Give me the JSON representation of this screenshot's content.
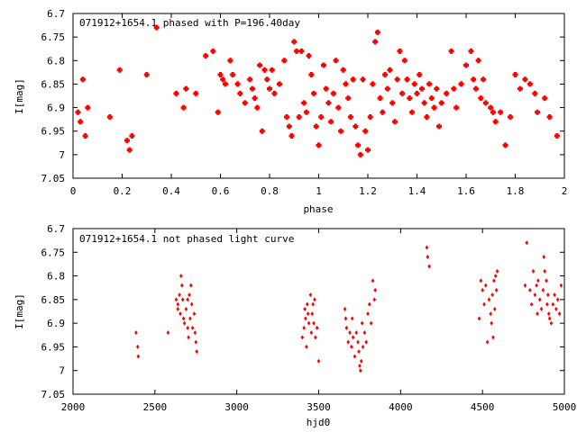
{
  "chart_data": [
    {
      "type": "scatter",
      "title": "071912+1654.1 phased with P=196.40day",
      "xlabel": "phase",
      "ylabel": "I[mag]",
      "xlim": [
        0,
        2
      ],
      "ylim": [
        7.05,
        6.7
      ],
      "y_inverted": true,
      "xticks": [
        "0",
        "0.2",
        "0.4",
        "0.6",
        "0.8",
        "1",
        "1.2",
        "1.4",
        "1.6",
        "1.8",
        "2"
      ],
      "yticks": [
        "6.7",
        "6.75",
        "6.8",
        "6.85",
        "6.9",
        "6.95",
        "7",
        "7.05"
      ],
      "marker": "filled-diamond-cross",
      "color": "#ff0000",
      "points": [
        [
          0.02,
          6.91
        ],
        [
          0.03,
          6.93
        ],
        [
          0.04,
          6.84
        ],
        [
          0.05,
          6.96
        ],
        [
          0.06,
          6.9
        ],
        [
          0.15,
          6.92
        ],
        [
          0.19,
          6.82
        ],
        [
          0.22,
          6.97
        ],
        [
          0.23,
          6.99
        ],
        [
          0.24,
          6.96
        ],
        [
          0.3,
          6.83
        ],
        [
          0.34,
          6.73
        ],
        [
          0.42,
          6.87
        ],
        [
          0.45,
          6.9
        ],
        [
          0.46,
          6.86
        ],
        [
          0.5,
          6.87
        ],
        [
          0.54,
          6.79
        ],
        [
          0.57,
          6.78
        ],
        [
          0.59,
          6.91
        ],
        [
          0.6,
          6.83
        ],
        [
          0.61,
          6.84
        ],
        [
          0.62,
          6.85
        ],
        [
          0.64,
          6.8
        ],
        [
          0.65,
          6.83
        ],
        [
          0.67,
          6.85
        ],
        [
          0.68,
          6.87
        ],
        [
          0.7,
          6.89
        ],
        [
          0.72,
          6.84
        ],
        [
          0.73,
          6.86
        ],
        [
          0.74,
          6.88
        ],
        [
          0.75,
          6.9
        ],
        [
          0.76,
          6.81
        ],
        [
          0.77,
          6.95
        ],
        [
          0.78,
          6.82
        ],
        [
          0.79,
          6.84
        ],
        [
          0.8,
          6.86
        ],
        [
          0.81,
          6.82
        ],
        [
          0.82,
          6.87
        ],
        [
          0.84,
          6.85
        ],
        [
          0.86,
          6.8
        ],
        [
          0.87,
          6.92
        ],
        [
          0.88,
          6.94
        ],
        [
          0.89,
          6.96
        ],
        [
          0.9,
          6.76
        ],
        [
          0.91,
          6.78
        ],
        [
          0.92,
          6.92
        ],
        [
          0.93,
          6.78
        ],
        [
          0.94,
          6.89
        ],
        [
          0.95,
          6.91
        ],
        [
          0.96,
          6.79
        ],
        [
          0.97,
          6.83
        ],
        [
          0.98,
          6.87
        ],
        [
          0.99,
          6.94
        ],
        [
          1.0,
          6.98
        ],
        [
          1.01,
          6.92
        ],
        [
          1.02,
          6.81
        ],
        [
          1.03,
          6.86
        ],
        [
          1.04,
          6.89
        ],
        [
          1.05,
          6.93
        ],
        [
          1.06,
          6.87
        ],
        [
          1.07,
          6.8
        ],
        [
          1.08,
          6.9
        ],
        [
          1.09,
          6.95
        ],
        [
          1.1,
          6.82
        ],
        [
          1.11,
          6.85
        ],
        [
          1.12,
          6.88
        ],
        [
          1.13,
          6.92
        ],
        [
          1.14,
          6.84
        ],
        [
          1.15,
          6.94
        ],
        [
          1.16,
          6.98
        ],
        [
          1.17,
          7.0
        ],
        [
          1.18,
          6.84
        ],
        [
          1.19,
          6.95
        ],
        [
          1.2,
          6.99
        ],
        [
          1.21,
          6.92
        ],
        [
          1.22,
          6.85
        ],
        [
          1.23,
          6.76
        ],
        [
          1.24,
          6.74
        ],
        [
          1.25,
          6.88
        ],
        [
          1.26,
          6.91
        ],
        [
          1.27,
          6.83
        ],
        [
          1.28,
          6.86
        ],
        [
          1.29,
          6.82
        ],
        [
          1.3,
          6.89
        ],
        [
          1.31,
          6.93
        ],
        [
          1.32,
          6.84
        ],
        [
          1.33,
          6.78
        ],
        [
          1.34,
          6.87
        ],
        [
          1.35,
          6.8
        ],
        [
          1.36,
          6.84
        ],
        [
          1.37,
          6.88
        ],
        [
          1.38,
          6.91
        ],
        [
          1.39,
          6.85
        ],
        [
          1.4,
          6.87
        ],
        [
          1.41,
          6.83
        ],
        [
          1.42,
          6.86
        ],
        [
          1.43,
          6.89
        ],
        [
          1.44,
          6.92
        ],
        [
          1.45,
          6.85
        ],
        [
          1.46,
          6.88
        ],
        [
          1.47,
          6.9
        ],
        [
          1.48,
          6.86
        ],
        [
          1.49,
          6.94
        ],
        [
          1.5,
          6.89
        ],
        [
          1.52,
          6.87
        ],
        [
          1.54,
          6.78
        ],
        [
          1.55,
          6.86
        ],
        [
          1.56,
          6.9
        ],
        [
          1.58,
          6.85
        ],
        [
          1.6,
          6.81
        ],
        [
          1.62,
          6.78
        ],
        [
          1.63,
          6.84
        ],
        [
          1.64,
          6.86
        ],
        [
          1.65,
          6.8
        ],
        [
          1.66,
          6.88
        ],
        [
          1.67,
          6.84
        ],
        [
          1.68,
          6.89
        ],
        [
          1.7,
          6.9
        ],
        [
          1.71,
          6.91
        ],
        [
          1.72,
          6.93
        ],
        [
          1.74,
          6.91
        ],
        [
          1.76,
          6.98
        ],
        [
          1.78,
          6.92
        ],
        [
          1.8,
          6.83
        ],
        [
          1.82,
          6.86
        ],
        [
          1.84,
          6.84
        ],
        [
          1.86,
          6.85
        ],
        [
          1.88,
          6.87
        ],
        [
          1.89,
          6.91
        ],
        [
          1.92,
          6.88
        ],
        [
          1.94,
          6.92
        ],
        [
          1.97,
          6.96
        ]
      ]
    },
    {
      "type": "scatter",
      "title": "071912+1654.1 not phased light curve",
      "xlabel": "hjd0",
      "ylabel": "I[mag]",
      "xlim": [
        2000,
        5000
      ],
      "ylim": [
        7.05,
        6.7
      ],
      "y_inverted": true,
      "xticks": [
        "2000",
        "2500",
        "3000",
        "3500",
        "4000",
        "4500",
        "5000"
      ],
      "yticks": [
        "6.7",
        "6.75",
        "6.8",
        "6.85",
        "6.9",
        "6.95",
        "7",
        "7.05"
      ],
      "marker": "small-diamond",
      "color": "#ff0000",
      "points": [
        [
          2385,
          6.92
        ],
        [
          2395,
          6.95
        ],
        [
          2398,
          6.97
        ],
        [
          2580,
          6.92
        ],
        [
          2630,
          6.85
        ],
        [
          2640,
          6.86
        ],
        [
          2650,
          6.84
        ],
        [
          2655,
          6.88
        ],
        [
          2660,
          6.8
        ],
        [
          2665,
          6.82
        ],
        [
          2670,
          6.85
        ],
        [
          2675,
          6.89
        ],
        [
          2680,
          6.9
        ],
        [
          2690,
          6.87
        ],
        [
          2700,
          6.91
        ],
        [
          2705,
          6.93
        ],
        [
          2710,
          6.84
        ],
        [
          2715,
          6.89
        ],
        [
          2720,
          6.82
        ],
        [
          2725,
          6.86
        ],
        [
          2730,
          6.91
        ],
        [
          2740,
          6.88
        ],
        [
          2745,
          6.92
        ],
        [
          2750,
          6.94
        ],
        [
          2755,
          6.96
        ],
        [
          2640,
          6.87
        ],
        [
          2700,
          6.85
        ],
        [
          3400,
          6.93
        ],
        [
          3410,
          6.91
        ],
        [
          3415,
          6.87
        ],
        [
          3420,
          6.89
        ],
        [
          3425,
          6.95
        ],
        [
          3430,
          6.86
        ],
        [
          3440,
          6.9
        ],
        [
          3450,
          6.84
        ],
        [
          3455,
          6.92
        ],
        [
          3460,
          6.88
        ],
        [
          3465,
          6.86
        ],
        [
          3470,
          6.9
        ],
        [
          3475,
          6.85
        ],
        [
          3480,
          6.93
        ],
        [
          3490,
          6.91
        ],
        [
          3500,
          6.98
        ],
        [
          3435,
          6.88
        ],
        [
          3660,
          6.87
        ],
        [
          3665,
          6.89
        ],
        [
          3670,
          6.91
        ],
        [
          3680,
          6.94
        ],
        [
          3690,
          6.92
        ],
        [
          3700,
          6.95
        ],
        [
          3705,
          6.89
        ],
        [
          3710,
          6.93
        ],
        [
          3720,
          6.97
        ],
        [
          3730,
          6.92
        ],
        [
          3740,
          6.94
        ],
        [
          3745,
          6.96
        ],
        [
          3750,
          6.99
        ],
        [
          3755,
          7.0
        ],
        [
          3760,
          6.98
        ],
        [
          3765,
          6.9
        ],
        [
          3770,
          6.95
        ],
        [
          3780,
          6.92
        ],
        [
          3790,
          6.94
        ],
        [
          3800,
          6.88
        ],
        [
          3810,
          6.86
        ],
        [
          3820,
          6.9
        ],
        [
          3830,
          6.81
        ],
        [
          3840,
          6.85
        ],
        [
          3845,
          6.83
        ],
        [
          4160,
          6.74
        ],
        [
          4165,
          6.76
        ],
        [
          4175,
          6.78
        ],
        [
          4480,
          6.89
        ],
        [
          4490,
          6.81
        ],
        [
          4500,
          6.83
        ],
        [
          4510,
          6.86
        ],
        [
          4520,
          6.82
        ],
        [
          4530,
          6.94
        ],
        [
          4540,
          6.85
        ],
        [
          4550,
          6.88
        ],
        [
          4555,
          6.9
        ],
        [
          4560,
          6.84
        ],
        [
          4565,
          6.93
        ],
        [
          4570,
          6.81
        ],
        [
          4575,
          6.87
        ],
        [
          4580,
          6.8
        ],
        [
          4585,
          6.83
        ],
        [
          4590,
          6.79
        ],
        [
          4760,
          6.82
        ],
        [
          4770,
          6.73
        ],
        [
          4790,
          6.83
        ],
        [
          4800,
          6.86
        ],
        [
          4810,
          6.79
        ],
        [
          4820,
          6.84
        ],
        [
          4830,
          6.82
        ],
        [
          4835,
          6.88
        ],
        [
          4840,
          6.81
        ],
        [
          4850,
          6.85
        ],
        [
          4860,
          6.87
        ],
        [
          4870,
          6.83
        ],
        [
          4875,
          6.76
        ],
        [
          4880,
          6.79
        ],
        [
          4890,
          6.81
        ],
        [
          4895,
          6.86
        ],
        [
          4900,
          6.84
        ],
        [
          4905,
          6.88
        ],
        [
          4910,
          6.89
        ],
        [
          4920,
          6.9
        ],
        [
          4930,
          6.86
        ],
        [
          4940,
          6.84
        ],
        [
          4950,
          6.87
        ],
        [
          4960,
          6.85
        ],
        [
          4970,
          6.88
        ],
        [
          4980,
          6.82
        ]
      ]
    }
  ]
}
